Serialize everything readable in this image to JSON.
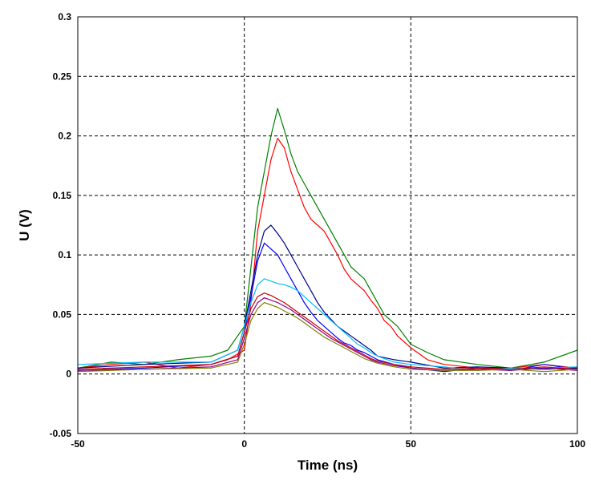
{
  "chart_data": {
    "type": "line",
    "xlabel": "Time (ns)",
    "ylabel": "U (V)",
    "xlim": [
      -50,
      100
    ],
    "ylim": [
      -0.05,
      0.3
    ],
    "x_ticks": [
      -50,
      0,
      50,
      100
    ],
    "x_tick_labels": [
      "-50",
      "0",
      "50",
      "100"
    ],
    "y_ticks": [
      -0.05,
      0,
      0.05,
      0.1,
      0.15,
      0.2,
      0.25,
      0.3
    ],
    "y_tick_labels": [
      "-0.05",
      "0",
      "0.05",
      "0.1",
      "0.15",
      "0.2",
      "0.25",
      "0.3"
    ],
    "grid": true,
    "grid_style": "dashed",
    "legend": "none",
    "series": [
      {
        "color": "#008000",
        "x": [
          -50,
          -40,
          -30,
          -20,
          -10,
          -5,
          0,
          2,
          4,
          6,
          8,
          10,
          12,
          14,
          16,
          18,
          20,
          22,
          24,
          26,
          28,
          30,
          32,
          34,
          36,
          38,
          40,
          42,
          44,
          46,
          50,
          55,
          60,
          70,
          80,
          90,
          100
        ],
        "y": [
          0.005,
          0.01,
          0.008,
          0.012,
          0.015,
          0.02,
          0.04,
          0.09,
          0.14,
          0.17,
          0.2,
          0.223,
          0.205,
          0.185,
          0.17,
          0.16,
          0.15,
          0.14,
          0.13,
          0.12,
          0.11,
          0.1,
          0.09,
          0.085,
          0.08,
          0.07,
          0.06,
          0.05,
          0.045,
          0.04,
          0.025,
          0.018,
          0.012,
          0.008,
          0.005,
          0.01,
          0.02
        ]
      },
      {
        "color": "#ff0000",
        "x": [
          -50,
          -40,
          -30,
          -20,
          -10,
          -5,
          0,
          2,
          4,
          6,
          8,
          10,
          12,
          14,
          16,
          18,
          20,
          22,
          24,
          26,
          28,
          30,
          32,
          34,
          36,
          38,
          40,
          42,
          44,
          46,
          50,
          55,
          60,
          70,
          80,
          90,
          100
        ],
        "y": [
          0.005,
          0.008,
          0.01,
          0.005,
          0.008,
          0.012,
          0.02,
          0.06,
          0.12,
          0.15,
          0.18,
          0.198,
          0.19,
          0.17,
          0.155,
          0.14,
          0.13,
          0.125,
          0.12,
          0.11,
          0.1,
          0.088,
          0.08,
          0.075,
          0.07,
          0.062,
          0.055,
          0.045,
          0.04,
          0.032,
          0.022,
          0.012,
          0.008,
          0.005,
          0.005,
          0.008,
          0.005
        ]
      },
      {
        "color": "#00008b",
        "x": [
          -50,
          -30,
          -10,
          -2,
          0,
          2,
          4,
          6,
          8,
          10,
          12,
          14,
          16,
          18,
          20,
          22,
          24,
          26,
          28,
          30,
          32,
          34,
          36,
          38,
          40,
          45,
          50,
          60,
          70,
          80,
          90,
          100
        ],
        "y": [
          0.005,
          0.008,
          0.01,
          0.02,
          0.04,
          0.07,
          0.1,
          0.12,
          0.125,
          0.118,
          0.11,
          0.1,
          0.09,
          0.08,
          0.07,
          0.06,
          0.052,
          0.046,
          0.04,
          0.036,
          0.032,
          0.028,
          0.024,
          0.02,
          0.015,
          0.012,
          0.01,
          0.005,
          0.006,
          0.005,
          0.004,
          0.005
        ]
      },
      {
        "color": "#0000ff",
        "x": [
          -50,
          -30,
          -10,
          -2,
          0,
          2,
          4,
          6,
          8,
          10,
          12,
          14,
          16,
          18,
          20,
          22,
          24,
          26,
          28,
          30,
          32,
          34,
          36,
          38,
          40,
          45,
          50,
          60,
          70,
          80,
          90,
          100
        ],
        "y": [
          0.003,
          0.005,
          0.008,
          0.015,
          0.035,
          0.065,
          0.095,
          0.11,
          0.105,
          0.1,
          0.09,
          0.08,
          0.07,
          0.06,
          0.052,
          0.045,
          0.04,
          0.035,
          0.03,
          0.026,
          0.024,
          0.02,
          0.018,
          0.015,
          0.012,
          0.008,
          0.005,
          0.002,
          0.005,
          0.003,
          0.008,
          0.004
        ]
      },
      {
        "color": "#00bfff",
        "x": [
          -50,
          -30,
          -10,
          -2,
          0,
          2,
          4,
          6,
          8,
          10,
          12,
          14,
          16,
          18,
          20,
          22,
          24,
          26,
          28,
          30,
          32,
          34,
          36,
          38,
          40,
          45,
          50,
          60,
          70,
          80,
          90,
          100
        ],
        "y": [
          0.008,
          0.01,
          0.01,
          0.02,
          0.04,
          0.06,
          0.075,
          0.08,
          0.078,
          0.076,
          0.075,
          0.073,
          0.07,
          0.065,
          0.06,
          0.055,
          0.05,
          0.045,
          0.04,
          0.035,
          0.03,
          0.025,
          0.022,
          0.018,
          0.015,
          0.01,
          0.008,
          0.006,
          0.003,
          0.005,
          0.005,
          0.006
        ]
      },
      {
        "color": "#cc0000",
        "x": [
          -50,
          -30,
          -10,
          -2,
          0,
          2,
          4,
          6,
          8,
          10,
          12,
          14,
          16,
          18,
          20,
          22,
          24,
          26,
          28,
          30,
          32,
          34,
          36,
          38,
          40,
          45,
          50,
          60,
          70,
          80,
          90,
          100
        ],
        "y": [
          0.004,
          0.006,
          0.008,
          0.015,
          0.035,
          0.055,
          0.065,
          0.068,
          0.066,
          0.063,
          0.06,
          0.056,
          0.052,
          0.048,
          0.044,
          0.04,
          0.036,
          0.032,
          0.028,
          0.025,
          0.022,
          0.019,
          0.016,
          0.013,
          0.011,
          0.008,
          0.006,
          0.004,
          0.005,
          0.004,
          0.006,
          0.004
        ]
      },
      {
        "color": "#8b008b",
        "x": [
          -50,
          -30,
          -10,
          -2,
          0,
          2,
          4,
          6,
          8,
          10,
          12,
          14,
          16,
          18,
          20,
          22,
          24,
          26,
          28,
          30,
          32,
          34,
          36,
          38,
          40,
          45,
          50,
          60,
          70,
          80,
          90,
          100
        ],
        "y": [
          0.003,
          0.004,
          0.006,
          0.012,
          0.03,
          0.05,
          0.06,
          0.064,
          0.062,
          0.06,
          0.057,
          0.054,
          0.05,
          0.046,
          0.042,
          0.038,
          0.034,
          0.03,
          0.027,
          0.024,
          0.021,
          0.018,
          0.015,
          0.012,
          0.01,
          0.007,
          0.005,
          0.003,
          0.004,
          0.003,
          0.005,
          0.003
        ]
      },
      {
        "color": "#808000",
        "x": [
          -50,
          -30,
          -10,
          -2,
          0,
          2,
          4,
          6,
          8,
          10,
          12,
          14,
          16,
          18,
          20,
          22,
          24,
          26,
          28,
          30,
          32,
          34,
          36,
          38,
          40,
          45,
          50,
          60,
          70,
          80,
          90,
          100
        ],
        "y": [
          0.002,
          0.004,
          0.005,
          0.01,
          0.025,
          0.045,
          0.055,
          0.06,
          0.058,
          0.056,
          0.053,
          0.05,
          0.047,
          0.043,
          0.039,
          0.035,
          0.031,
          0.028,
          0.025,
          0.022,
          0.019,
          0.016,
          0.013,
          0.011,
          0.009,
          0.006,
          0.004,
          0.003,
          0.003,
          0.004,
          0.002,
          0.004
        ]
      }
    ]
  }
}
